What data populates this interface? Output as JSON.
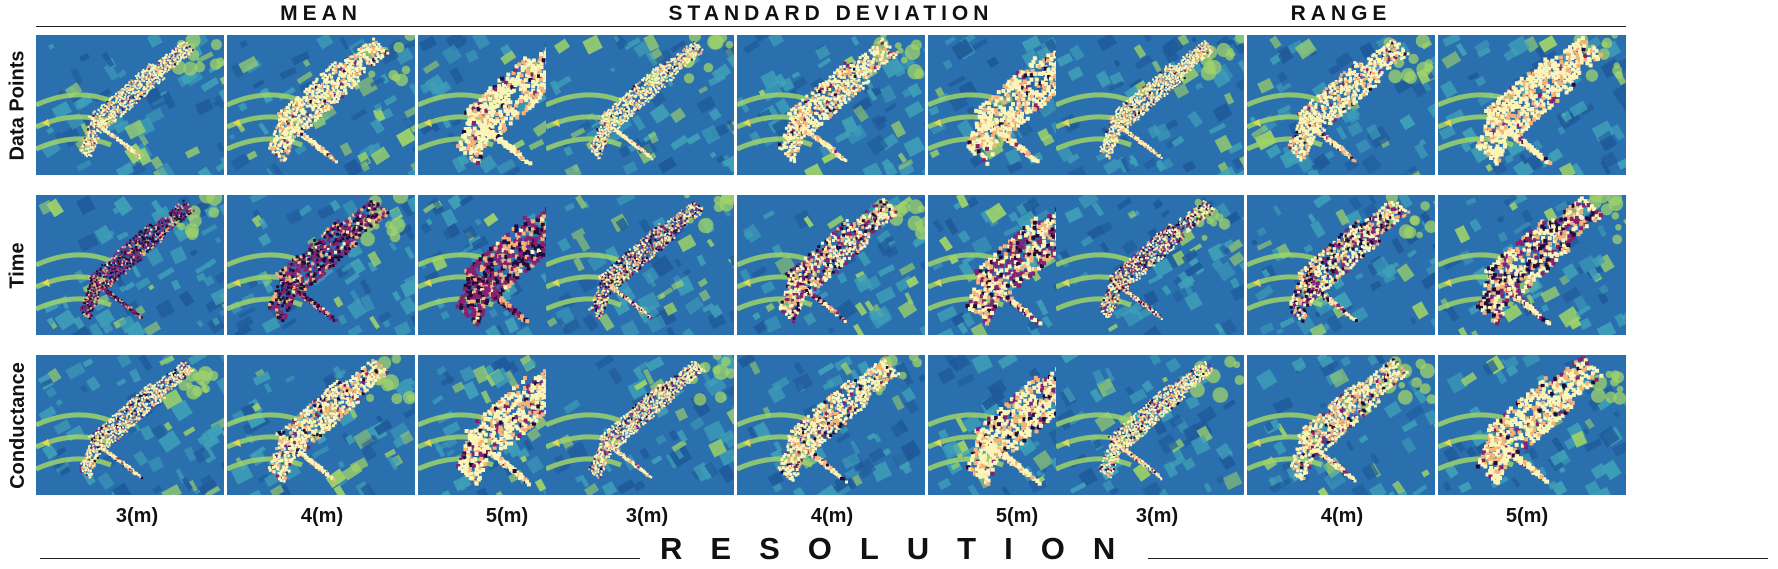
{
  "groups": [
    "MEAN",
    "STANDARD DEVIATION",
    "RANGE"
  ],
  "rows": [
    "Data Points",
    "Time",
    "Conductance"
  ],
  "columns": [
    "3(m)",
    "4(m)",
    "5(m)"
  ],
  "axis_title": "RESOLUTION",
  "colors": {
    "background_low": "#2a6fae",
    "background_mid": "#3fa0b8",
    "background_high": "#9fd36a",
    "park": "#e8d84a",
    "path_light": "#fdf5b8",
    "path_mid": "#f7b27a",
    "path_dark": "#8a1f6e",
    "path_darkest": "#240a3a"
  },
  "icons": [
    "aerial-map-tile"
  ]
}
